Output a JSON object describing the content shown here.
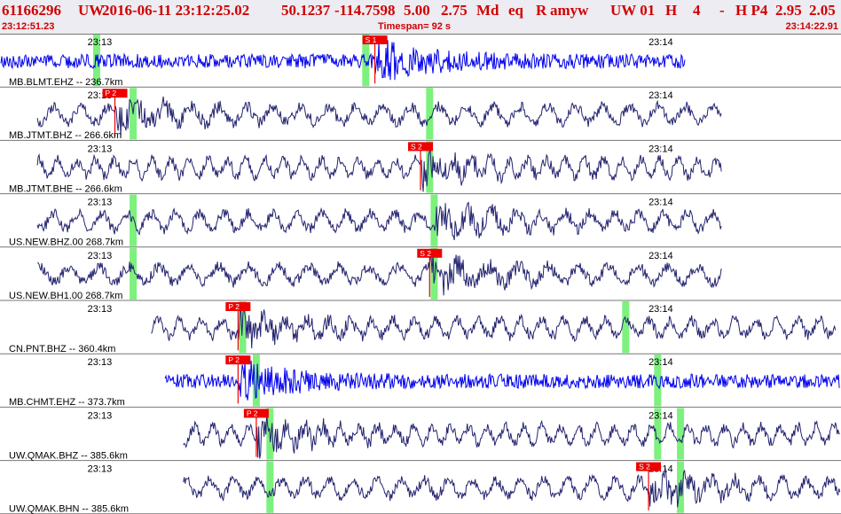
{
  "header": {
    "event_id": "61166296",
    "network": "UW",
    "datetime": "2016-06-11 23:12:25.02",
    "lat": "50.1237",
    "lon": "-114.7598",
    "depth": "5.00",
    "magnitude": "2.75",
    "mag_type": "Md",
    "etype": "eq",
    "review": "R",
    "author": "amyw",
    "origin_code": "UW 01",
    "gtype": "H",
    "quality": "4",
    "dash": "-",
    "algo": "H P4",
    "rms": "2.95",
    "erh": "2.05"
  },
  "subheader": {
    "start_time": "23:12:51.23",
    "timespan": "Timespan=  92 s",
    "end_time": "23:14:22.91"
  },
  "colors": {
    "header_text": "#d00000",
    "header_bg": "#ececf2",
    "trace_blue": "#0000ee",
    "trace_navy": "#232370",
    "pick_box": "#ee0000",
    "pick_window": "#66ee66",
    "separator": "#777777"
  },
  "chart_data": {
    "type": "line",
    "title": "",
    "time_ticks": [
      "23:13",
      "23:14"
    ],
    "window_seconds": 92,
    "channels": [
      {
        "label": "MB.BLMT.EHZ -- 236.7km",
        "color": "blue",
        "data_start_s": 0,
        "data_end_s": 75,
        "picks": [
          {
            "phase": "S 1",
            "time_s": 41
          }
        ],
        "windows_s": [
          10.5,
          40
        ],
        "tick_13_s": 9.5,
        "tick_14_s": 71
      },
      {
        "label": "MB.JTMT.BHZ -- 266.6km",
        "color": "navy",
        "data_start_s": 4,
        "data_end_s": 79,
        "picks": [
          {
            "phase": "P 2",
            "time_s": 12.5
          }
        ],
        "windows_s": [
          14.5,
          47
        ],
        "tick_13_s": 9.5,
        "tick_14_s": 71
      },
      {
        "label": "MB.JTMT.BHE -- 266.6km",
        "color": "navy",
        "data_start_s": 4,
        "data_end_s": 79,
        "picks": [
          {
            "phase": "S 2",
            "time_s": 46
          }
        ],
        "windows_s": [
          47
        ],
        "tick_13_s": 9.5,
        "tick_14_s": 71
      },
      {
        "label": "US.NEW.BHZ.00 268.7km",
        "color": "navy",
        "data_start_s": 4,
        "data_end_s": 79,
        "picks": [],
        "windows_s": [
          14.5,
          47.5
        ],
        "tick_13_s": 9.5,
        "tick_14_s": 71
      },
      {
        "label": "US.NEW.BH1.00 268.7km",
        "color": "navy",
        "data_start_s": 4,
        "data_end_s": 79,
        "picks": [
          {
            "phase": "S 2",
            "time_s": 47
          }
        ],
        "windows_s": [
          14.5,
          47.5
        ],
        "tick_13_s": 9.5,
        "tick_14_s": 71
      },
      {
        "label": "CN.PNT.BHZ -- 360.4km",
        "color": "navy",
        "data_start_s": 16.5,
        "data_end_s": 91.5,
        "picks": [
          {
            "phase": "P 2",
            "time_s": 26
          }
        ],
        "windows_s": [
          26.5,
          68.5
        ],
        "tick_13_s": 9.5,
        "tick_14_s": 71
      },
      {
        "label": "MB.CHMT.EHZ -- 373.7km",
        "color": "blue",
        "data_start_s": 18,
        "data_end_s": 92,
        "picks": [
          {
            "phase": "P 2",
            "time_s": 26
          }
        ],
        "windows_s": [
          28,
          72
        ],
        "tick_13_s": 9.5,
        "tick_14_s": 71
      },
      {
        "label": "UW.QMAK.BHZ -- 385.6km",
        "color": "navy",
        "data_start_s": 20,
        "data_end_s": 92,
        "picks": [
          {
            "phase": "P 2",
            "time_s": 28
          }
        ],
        "windows_s": [
          29.5,
          72,
          74.5
        ],
        "tick_13_s": 9.5,
        "tick_14_s": 71
      },
      {
        "label": "UW.QMAK.BHN -- 385.6km",
        "color": "navy",
        "data_start_s": 20,
        "data_end_s": 92,
        "picks": [
          {
            "phase": "S 2",
            "time_s": 71
          }
        ],
        "windows_s": [
          29.5,
          74.5
        ],
        "tick_13_s": 9.5,
        "tick_14_s": 71
      }
    ]
  }
}
